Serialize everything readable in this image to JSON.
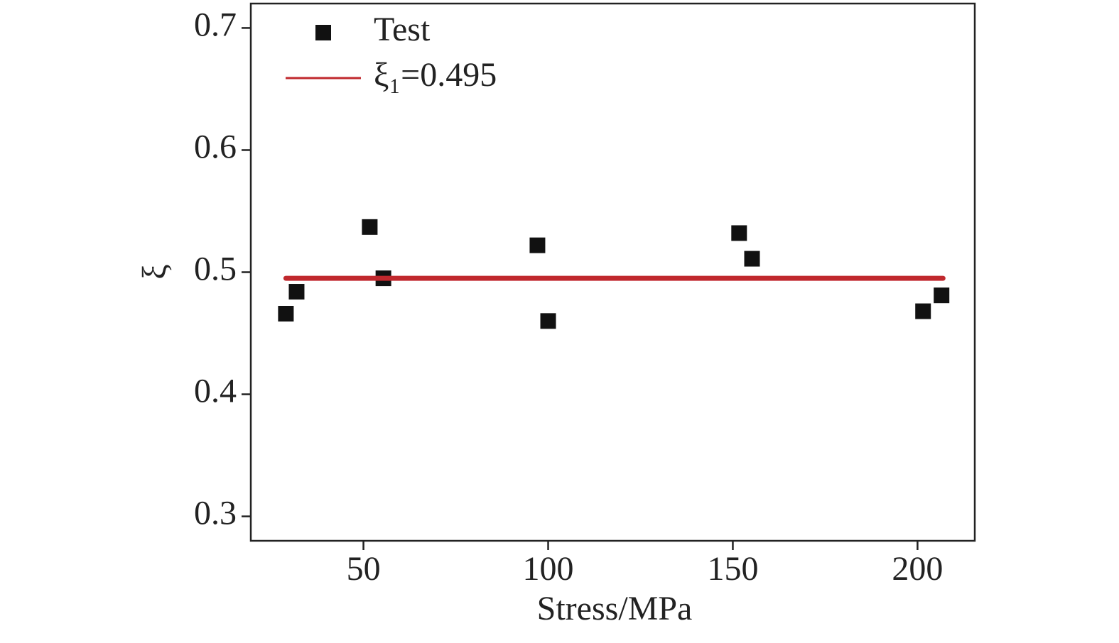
{
  "chart_data": {
    "type": "scatter",
    "x_label": "Stress/MPa",
    "y_label": "ξ",
    "xlim": [
      19.5,
      215.5
    ],
    "xticks": [
      50,
      100,
      150,
      200
    ],
    "ylim": [
      0.28,
      0.72
    ],
    "yticks": [
      0.3,
      0.4,
      0.5,
      0.6,
      0.7
    ],
    "legend": "upper left",
    "series": [
      {
        "name": "Test",
        "type": "scatter",
        "color": "#111111",
        "x": [
          29.0,
          31.9,
          51.7,
          55.4,
          97.1,
          100.0,
          151.7,
          155.2,
          201.5,
          206.5
        ],
        "values": [
          0.466,
          0.484,
          0.537,
          0.495,
          0.522,
          0.46,
          0.532,
          0.511,
          0.468,
          0.481
        ]
      },
      {
        "name": "ξ₁=0.495",
        "type": "line",
        "color": "#c0282d",
        "x": [
          29.0,
          206.9
        ],
        "values": [
          0.495,
          0.495
        ]
      }
    ]
  }
}
